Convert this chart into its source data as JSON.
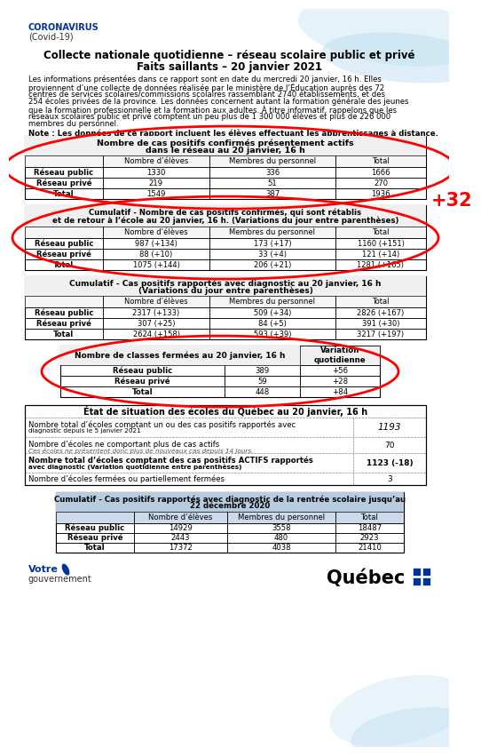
{
  "title_line1": "Collecte nationale quotidienne – réseau scolaire public et privé",
  "title_line2": "Faits saillants – 20 janvier 2021",
  "header_line1": "CORONAVIRUS",
  "header_line2": "(Covid-19)",
  "intro_lines": [
    "Les informations présentées dans ce rapport sont en date du mercredi 20 janvier, 16 h. Elles",
    "proviennent d’une collecte de données réalisée par le ministère de l’Éducation auprès des 72",
    "centres de services scolaires/commissions scolaires rassemblant 2740 établissements, et des",
    "254 écoles privées de la province. Les données concernent autant la formation générale des jeunes",
    "que la formation professionnelle et la formation aux adultes. À titre informatif, rappelons que les",
    "réseaux scolaires public et privé comptent un peu plus de 1 300 000 élèves et plus de 226 000",
    "membres du personnel."
  ],
  "note_text": "Note : Les données de ce rapport incluent les élèves effectuant les apprentissages à distance.",
  "table1_title_lines": [
    "Nombre de cas positifs confirmés présentement actifs",
    "dans le réseau au 20 janvier, 16 h"
  ],
  "table1_headers": [
    "",
    "Nombre d’élèves",
    "Membres du personnel",
    "Total"
  ],
  "table1_rows": [
    [
      "Réseau public",
      "1330",
      "336",
      "1666"
    ],
    [
      "Réseau privé",
      "219",
      "51",
      "270"
    ],
    [
      "Total",
      "1549",
      "387",
      "1936"
    ]
  ],
  "annotation_32": "+32",
  "table2_title_lines": [
    "Cumulatif - Nombre de cas positifs confirmés, qui sont rétablis",
    "et de retour à l’école au 20 janvier, 16 h. (Variations du jour entre parenthèses)"
  ],
  "table2_headers": [
    "",
    "Nombre d’élèves",
    "Membres du personnel",
    "Total"
  ],
  "table2_rows": [
    [
      "Réseau public",
      "987 (+134)",
      "173 (+17)",
      "1160 (+151)"
    ],
    [
      "Réseau privé",
      "88 (+10)",
      "33 (+4)",
      "121 (+14)"
    ],
    [
      "Total",
      "1075 (+144)",
      "206 (+21)",
      "1281 (+165)"
    ]
  ],
  "table3_title_lines": [
    "Cumulatif - Cas positifs rapportés avec diagnostic au 20 janvier, 16 h",
    "(Variations du jour entre parenthèses)"
  ],
  "table3_headers": [
    "",
    "Nombre d’élèves",
    "Membres du personnel",
    "Total"
  ],
  "table3_rows": [
    [
      "Réseau public",
      "2317 (+133)",
      "509 (+34)",
      "2826 (+167)"
    ],
    [
      "Réseau privé",
      "307 (+25)",
      "84 (+5)",
      "391 (+30)"
    ],
    [
      "Total",
      "2624 (+158)",
      "593 (+39)",
      "3217 (+197)"
    ]
  ],
  "table4_title": "Nombre de classes fermées au 20 janvier, 16 h",
  "table4_col2": "Variation\nquotidienne",
  "table4_rows": [
    [
      "Réseau public",
      "389",
      "+56"
    ],
    [
      "Réseau privé",
      "59",
      "+28"
    ],
    [
      "Total",
      "448",
      "+84"
    ]
  ],
  "table5_title": "État de situation des écoles du Québec au 20 janvier, 16 h",
  "table5_rows": [
    [
      "Nombre total d’écoles comptant un ou des cas positifs rapportés avec\ndiagnostic depuis le 5 janvier 2021",
      "1193",
      false,
      true
    ],
    [
      "Nombre d’écoles ne comportant plus de cas actifs\nCes écoles ne présentent donc plus de nouveaux cas depuis 14 jours.",
      "70",
      false,
      false
    ],
    [
      "Nombre total d’écoles comptant des cas positifs ACTIFS rapportés\navec diagnostic (Variation quotidienne entre parenthèses)",
      "1123 (-18)",
      true,
      false
    ],
    [
      "Nombre d’écoles fermées ou partiellement fermées",
      "3",
      false,
      false
    ]
  ],
  "table6_title_lines": [
    "Cumulatif - Cas positifs rapportés avec diagnostic de la rentrée scolaire jusqu’au",
    "22 décembre 2020"
  ],
  "table6_headers": [
    "",
    "Nombre d’élèves",
    "Membres du personnel",
    "Total"
  ],
  "table6_rows": [
    [
      "Réseau public",
      "14929",
      "3558",
      "18487"
    ],
    [
      "Réseau privé",
      "2443",
      "480",
      "2923"
    ],
    [
      "Total",
      "17372",
      "4038",
      "21410"
    ]
  ],
  "bg_color": "#ffffff",
  "header_color": "#003399",
  "annotation_color": "#ff0000",
  "red_color": "#ff0000",
  "wave_color1": "#d0e8f5",
  "wave_color2": "#b8daf0",
  "footer_blue": "#003399"
}
